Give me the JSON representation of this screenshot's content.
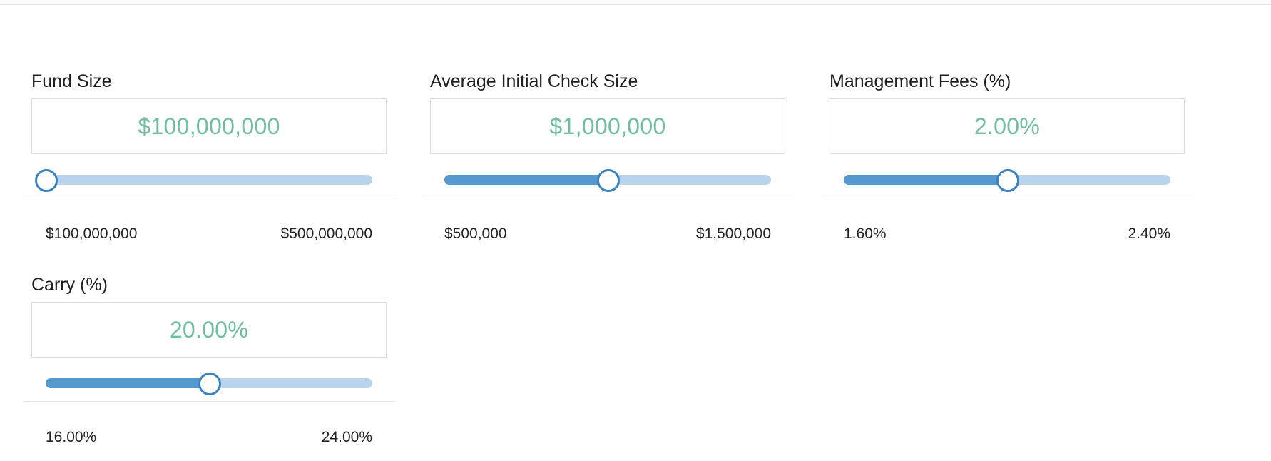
{
  "sliders": [
    {
      "label": "Fund Size",
      "value": "$100,000,000",
      "min_label": "$100,000,000",
      "max_label": "$500,000,000",
      "fraction": 0.0
    },
    {
      "label": "Average Initial Check Size",
      "value": "$1,000,000",
      "min_label": "$500,000",
      "max_label": "$1,500,000",
      "fraction": 0.5
    },
    {
      "label": "Management Fees (%)",
      "value": "2.00%",
      "min_label": "1.60%",
      "max_label": "2.40%",
      "fraction": 0.5
    },
    {
      "label": "Carry (%)",
      "value": "20.00%",
      "min_label": "16.00%",
      "max_label": "24.00%",
      "fraction": 0.5
    }
  ],
  "colors": {
    "value_text": "#6fbf9f",
    "track": "#b9d4ec",
    "fill": "#5599cf",
    "thumb_border": "#3a82c0"
  }
}
